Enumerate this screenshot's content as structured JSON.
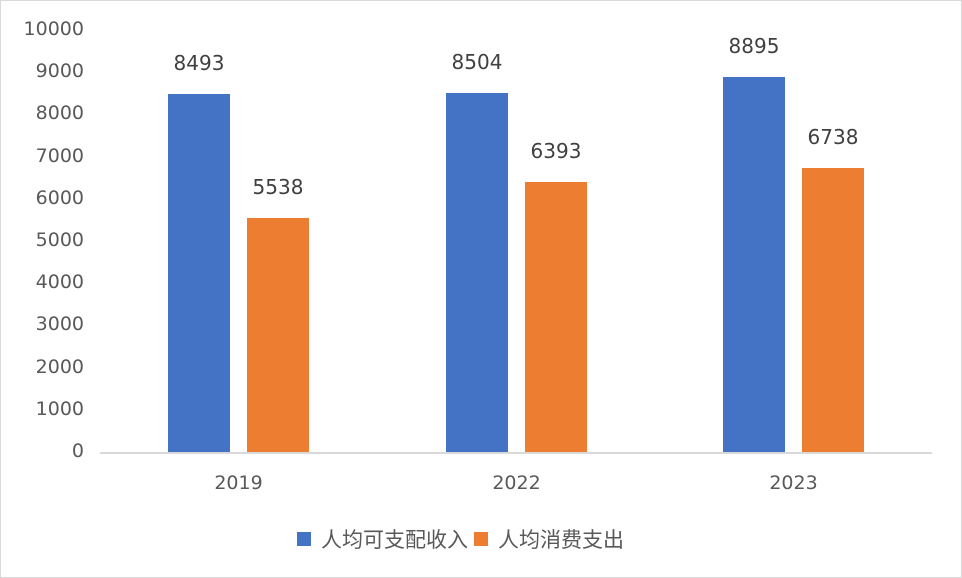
{
  "chart_data": {
    "type": "bar",
    "title": "",
    "xlabel": "",
    "ylabel": "",
    "categories": [
      "2019",
      "2022",
      "2023"
    ],
    "series": [
      {
        "name": "人均可支配收入",
        "color": "#4472C4",
        "values": [
          8493,
          8504,
          8895
        ]
      },
      {
        "name": "人均消费支出",
        "color": "#ED7D31",
        "values": [
          5538,
          6393,
          6738
        ]
      }
    ],
    "ylim": [
      0,
      10000
    ],
    "yticks": [
      "0",
      "1000",
      "2000",
      "3000",
      "4000",
      "5000",
      "6000",
      "7000",
      "8000",
      "9000",
      "10000"
    ],
    "grid": false,
    "legend_position": "bottom",
    "data_labels": true
  },
  "legend": {
    "items": [
      {
        "label": "人均可支配收入",
        "color": "#4472C4"
      },
      {
        "label": "人均消费支出",
        "color": "#ED7D31"
      }
    ]
  },
  "colors": {
    "series1": "#4472C4",
    "series2": "#ED7D31",
    "axis": "#D9D9D9",
    "text": "#595959"
  }
}
